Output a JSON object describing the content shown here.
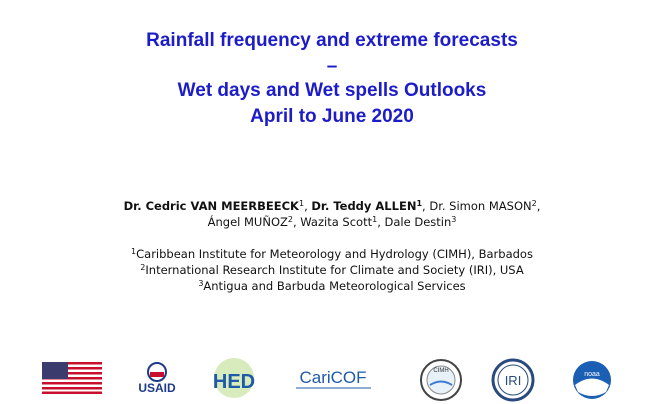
{
  "title": {
    "lines": [
      "Rainfall frequency and extreme forecasts",
      "–",
      "Wet days and Wet spells Outlooks",
      "April to June 2020"
    ]
  },
  "authors": {
    "lines": [
      [
        {
          "text": "Dr. Cedric VAN MEERBEECK",
          "style": "bold"
        },
        {
          "text": "1",
          "style": "sup"
        },
        {
          "text": ", "
        },
        {
          "text": "Dr. Teddy ALLEN",
          "style": "bold"
        },
        {
          "text": "1",
          "style": "sup-bold"
        },
        {
          "text": ", Dr. Simon MASON"
        },
        {
          "text": "2",
          "style": "sup"
        },
        {
          "text": ","
        }
      ],
      [
        {
          "text": "Ángel MUÑOZ"
        },
        {
          "text": "2",
          "style": "sup"
        },
        {
          "text": ", Wazita Scott"
        },
        {
          "text": "1",
          "style": "sup"
        },
        {
          "text": ", Dale Destin"
        },
        {
          "text": "3",
          "style": "sup"
        }
      ]
    ]
  },
  "affiliations": [
    {
      "sup": "1",
      "text": "Caribbean Institute for Meteorology and Hydrology (CIMH), Barbados"
    },
    {
      "sup": "2",
      "text": "International Research Institute for Climate and Society (IRI), USA"
    },
    {
      "sup": "3",
      "text": "Antigua and Barbuda Meteorological Services"
    }
  ],
  "logos": {
    "usaid": "USAID",
    "hed": "HED",
    "caricof": "CariCOF",
    "cimh": "CIMH",
    "iri": "IRI",
    "noaa": "noaa"
  }
}
